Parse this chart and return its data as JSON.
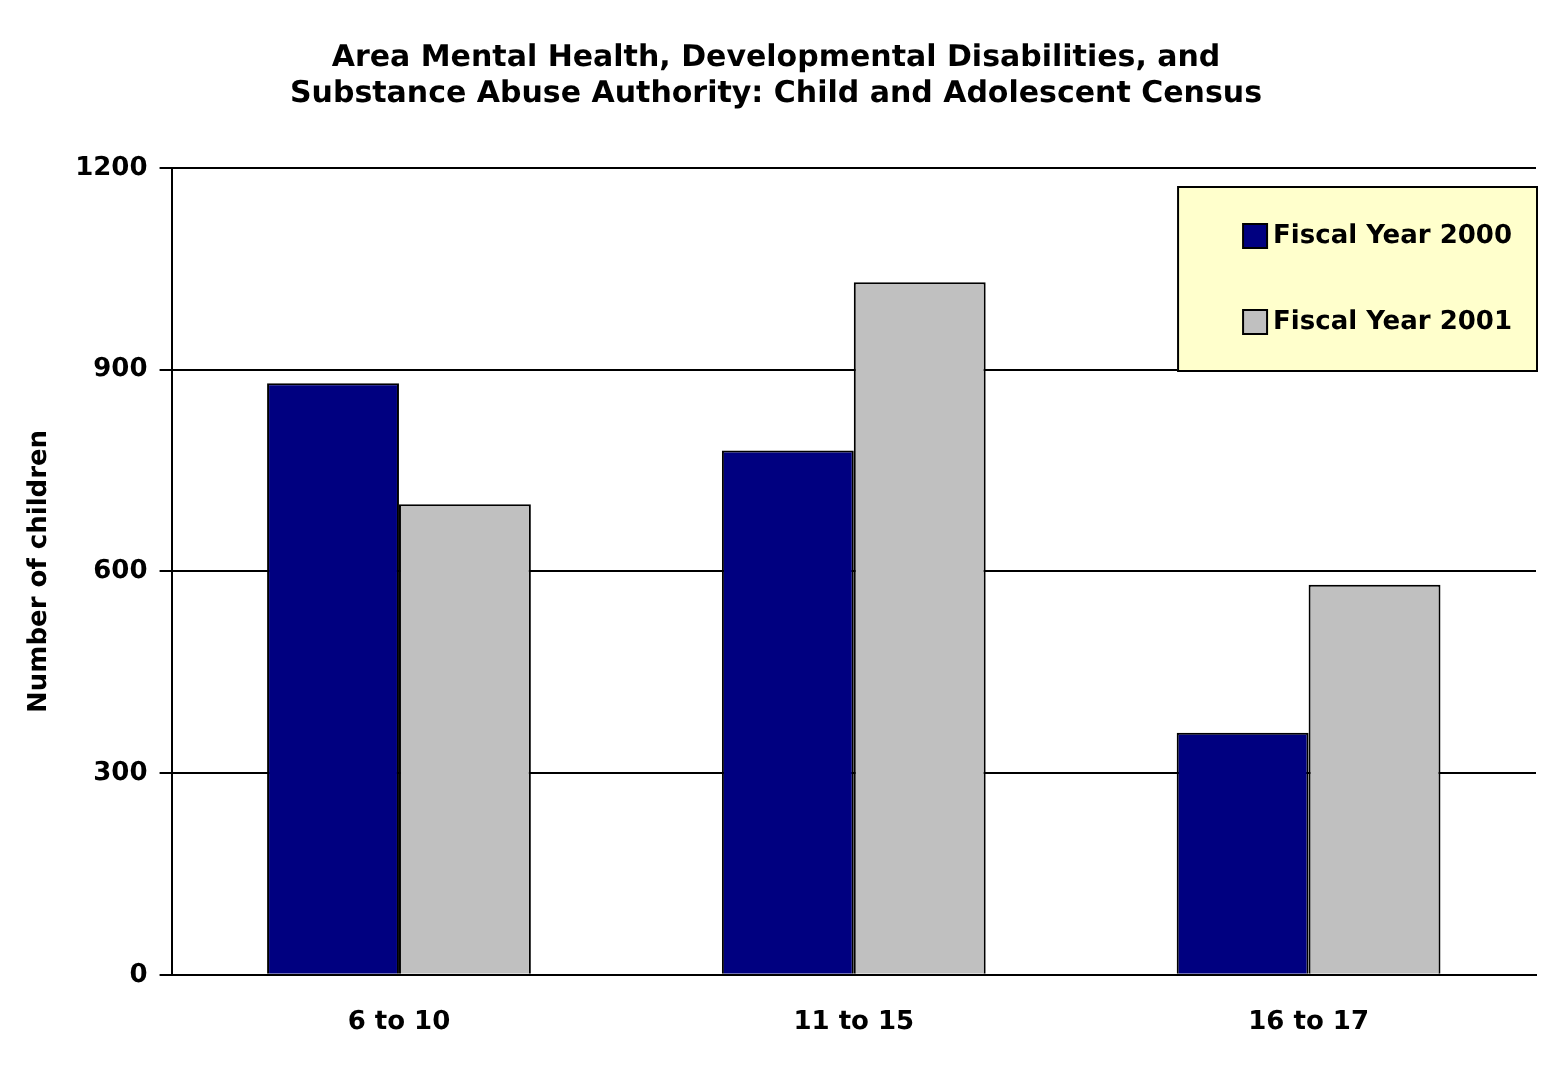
{
  "chart_data": {
    "type": "bar",
    "title": "Area Mental Health, Developmental Disabilities, and\nSubstance Abuse Authority: Child and Adolescent Census",
    "ylabel": "Number of children",
    "categories": [
      "6 to 10",
      "11 to 15",
      "16 to 17"
    ],
    "series": [
      {
        "name": "Fiscal Year 2000",
        "color": "#000080",
        "values": [
          880,
          780,
          360
        ]
      },
      {
        "name": "Fiscal Year 2001",
        "color": "#c0c0c0",
        "values": [
          700,
          1030,
          580
        ]
      }
    ],
    "ylim": [
      0,
      1200
    ],
    "yticks": [
      0,
      300,
      600,
      900,
      1200
    ],
    "grid": "y",
    "legend": "top right"
  }
}
